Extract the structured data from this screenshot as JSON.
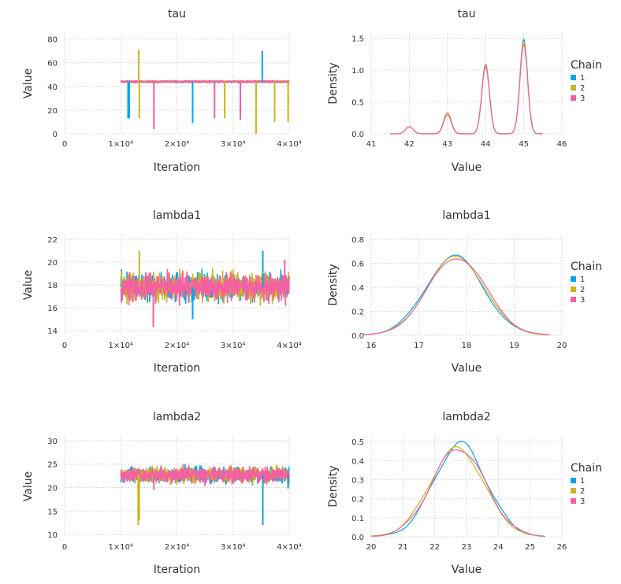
{
  "colors": {
    "chain1": "#00a7e8",
    "chain2": "#cdb520",
    "chain3": "#f65fa2",
    "grid": "#d9d9d9",
    "text": "#333333"
  },
  "chart_data": [
    {
      "type": "line",
      "id": "trace-tau",
      "title": "tau",
      "xlabel": "Iteration",
      "ylabel": "Value",
      "xlim": [
        0,
        40000
      ],
      "ylim": [
        0,
        85
      ],
      "xticks": [
        0,
        10000,
        20000,
        30000,
        40000
      ],
      "xtick_labels": [
        "0",
        "1×10⁴",
        "2×10⁴",
        "3×10⁴",
        "4×10⁴"
      ],
      "yticks": [
        0,
        20,
        40,
        60,
        80
      ],
      "ytick_labels": [
        "0",
        "20",
        "40",
        "60",
        "80"
      ],
      "band": {
        "x_range": [
          10000,
          40000
        ],
        "center": 44,
        "spread": 1.2
      },
      "spikes": [
        {
          "chain": 0,
          "x": 11300,
          "y": 13
        },
        {
          "chain": 0,
          "x": 11500,
          "y": 13
        },
        {
          "chain": 1,
          "x": 13200,
          "y": 71
        },
        {
          "chain": 1,
          "x": 13300,
          "y": 13
        },
        {
          "chain": 2,
          "x": 15900,
          "y": 4
        },
        {
          "chain": 0,
          "x": 22800,
          "y": 9
        },
        {
          "chain": 2,
          "x": 26700,
          "y": 13
        },
        {
          "chain": 1,
          "x": 28500,
          "y": 13
        },
        {
          "chain": 2,
          "x": 31300,
          "y": 12
        },
        {
          "chain": 1,
          "x": 34100,
          "y": 0
        },
        {
          "chain": 0,
          "x": 35200,
          "y": 70
        },
        {
          "chain": 1,
          "x": 37400,
          "y": 10
        },
        {
          "chain": 1,
          "x": 39800,
          "y": 10
        }
      ]
    },
    {
      "type": "line",
      "id": "density-tau",
      "title": "tau",
      "xlabel": "Value",
      "ylabel": "Density",
      "xlim": [
        41,
        46
      ],
      "ylim": [
        0,
        1.58
      ],
      "xticks": [
        41,
        42,
        43,
        44,
        45,
        46
      ],
      "xtick_labels": [
        "41",
        "42",
        "43",
        "44",
        "45",
        "46"
      ],
      "yticks": [
        0,
        0.5,
        1.0,
        1.5
      ],
      "ytick_labels": [
        "0.0",
        "0.5",
        "1.0",
        "1.5"
      ],
      "density_peaks": [
        {
          "chain": "1",
          "peaks": [
            [
              42,
              0.11
            ],
            [
              43,
              0.33
            ],
            [
              44,
              1.05
            ],
            [
              45,
              1.48
            ]
          ]
        },
        {
          "chain": "2",
          "peaks": [
            [
              42,
              0.11
            ],
            [
              43,
              0.33
            ],
            [
              44,
              1.04
            ],
            [
              45,
              1.45
            ]
          ]
        },
        {
          "chain": "3",
          "peaks": [
            [
              42,
              0.11
            ],
            [
              43,
              0.3
            ],
            [
              44,
              1.09
            ],
            [
              45,
              1.4
            ]
          ]
        }
      ],
      "peak_width": 0.1,
      "legend": {
        "title": "Chain",
        "entries": [
          "1",
          "2",
          "3"
        ],
        "position": "right"
      }
    },
    {
      "type": "line",
      "id": "trace-lambda1",
      "title": "lambda1",
      "xlabel": "Iteration",
      "ylabel": "Value",
      "xlim": [
        0,
        40000
      ],
      "ylim": [
        13.6,
        22.4
      ],
      "xticks": [
        0,
        10000,
        20000,
        30000,
        40000
      ],
      "xtick_labels": [
        "0",
        "1×10⁴",
        "2×10⁴",
        "3×10⁴",
        "4×10⁴"
      ],
      "yticks": [
        14,
        16,
        18,
        20,
        22
      ],
      "ytick_labels": [
        "14",
        "16",
        "18",
        "20",
        "22"
      ],
      "band": {
        "x_range": [
          10000,
          40000
        ],
        "center": 17.8,
        "spread": 1.8
      },
      "spikes": [
        {
          "chain": 1,
          "x": 13300,
          "y": 21.0
        },
        {
          "chain": 2,
          "x": 15800,
          "y": 14.3
        },
        {
          "chain": 0,
          "x": 22800,
          "y": 15.0
        },
        {
          "chain": 0,
          "x": 35300,
          "y": 21.0
        },
        {
          "chain": 2,
          "x": 39200,
          "y": 20.2
        }
      ]
    },
    {
      "type": "line",
      "id": "density-lambda1",
      "title": "lambda1",
      "xlabel": "Value",
      "ylabel": "Density",
      "xlim": [
        16,
        20
      ],
      "ylim": [
        0,
        0.84
      ],
      "xticks": [
        16,
        17,
        18,
        19,
        20
      ],
      "xtick_labels": [
        "16",
        "17",
        "18",
        "19",
        "20"
      ],
      "yticks": [
        0,
        0.2,
        0.4,
        0.6,
        0.8
      ],
      "ytick_labels": [
        "0.0",
        "0.2",
        "0.4",
        "0.6",
        "0.8"
      ],
      "density_normal": [
        {
          "chain": "1",
          "mean": 17.75,
          "peak": 0.66,
          "sd": 0.6,
          "wobble": 0.012
        },
        {
          "chain": "2",
          "mean": 17.78,
          "peak": 0.655,
          "sd": 0.6,
          "wobble": 0.01
        },
        {
          "chain": "3",
          "mean": 17.8,
          "peak": 0.65,
          "sd": 0.61,
          "wobble": 0.014
        }
      ],
      "legend": {
        "title": "Chain",
        "entries": [
          "1",
          "2",
          "3"
        ],
        "position": "right"
      }
    },
    {
      "type": "line",
      "id": "trace-lambda2",
      "title": "lambda2",
      "xlabel": "Iteration",
      "ylabel": "Value",
      "xlim": [
        0,
        40000
      ],
      "ylim": [
        9.5,
        31
      ],
      "xticks": [
        0,
        10000,
        20000,
        30000,
        40000
      ],
      "xtick_labels": [
        "0",
        "1×10⁴",
        "2×10⁴",
        "3×10⁴",
        "4×10⁴"
      ],
      "yticks": [
        10,
        15,
        20,
        25,
        30
      ],
      "ytick_labels": [
        "10",
        "15",
        "20",
        "25",
        "30"
      ],
      "band": {
        "x_range": [
          10000,
          40000
        ],
        "center": 22.7,
        "spread": 2.4
      },
      "spikes": [
        {
          "chain": 1,
          "x": 13100,
          "y": 12.0
        },
        {
          "chain": 1,
          "x": 13300,
          "y": 13.0
        },
        {
          "chain": 2,
          "x": 15900,
          "y": 19.5
        },
        {
          "chain": 0,
          "x": 35300,
          "y": 12.0
        },
        {
          "chain": 0,
          "x": 39800,
          "y": 19.8
        }
      ]
    },
    {
      "type": "line",
      "id": "density-lambda2",
      "title": "lambda2",
      "xlabel": "Value",
      "ylabel": "Density",
      "xlim": [
        20,
        26
      ],
      "ylim": [
        0,
        0.53
      ],
      "xticks": [
        20,
        21,
        22,
        23,
        24,
        25,
        26
      ],
      "xtick_labels": [
        "20",
        "21",
        "22",
        "23",
        "24",
        "25",
        "26"
      ],
      "yticks": [
        0,
        0.1,
        0.2,
        0.3,
        0.4,
        0.5
      ],
      "ytick_labels": [
        "0.0",
        "0.1",
        "0.2",
        "0.3",
        "0.4",
        "0.5"
      ],
      "density_normal": [
        {
          "chain": "1",
          "mean": 22.8,
          "peak": 0.49,
          "sd": 0.82,
          "wobble": 0.015
        },
        {
          "chain": "2",
          "mean": 22.7,
          "peak": 0.465,
          "sd": 0.85,
          "wobble": 0.01
        },
        {
          "chain": "3",
          "mean": 22.75,
          "peak": 0.465,
          "sd": 0.85,
          "wobble": 0.012
        }
      ],
      "legend": {
        "title": "Chain",
        "entries": [
          "1",
          "2",
          "3"
        ],
        "position": "right"
      }
    }
  ]
}
